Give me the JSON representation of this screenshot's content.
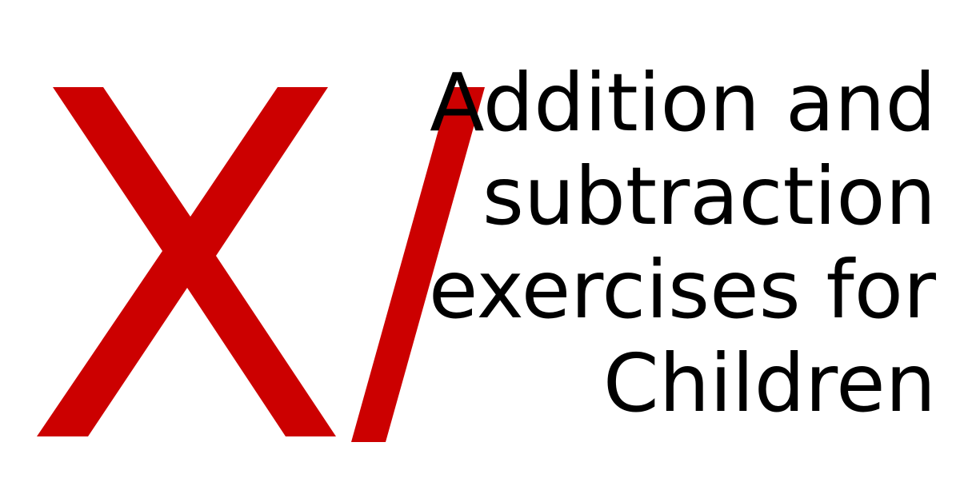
{
  "logo": {
    "icon": "x-slash-icon",
    "color": "#cc0000"
  },
  "title": {
    "lines": [
      "Addition and",
      "subtraction",
      "exercises for",
      "Children"
    ],
    "color": "#000000"
  }
}
